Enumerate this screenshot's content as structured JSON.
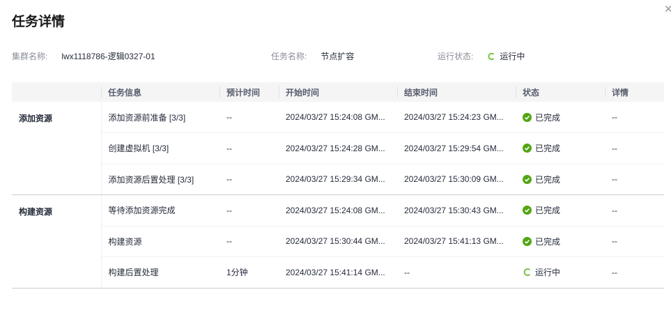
{
  "dialog": {
    "title": "任务详情",
    "close_icon": "close-icon"
  },
  "info": {
    "cluster_label": "集群名称:",
    "cluster_value": "lwx1118786-逻辑0327-01",
    "task_label": "任务名称:",
    "task_value": "节点扩容",
    "status_label": "运行状态:",
    "status_value": "运行中"
  },
  "colors": {
    "success": "#52a513",
    "running": "#7ac143"
  },
  "table": {
    "headers": [
      "",
      "任务信息",
      "预计时间",
      "开始时间",
      "结束时间",
      "状态",
      "详情"
    ],
    "groups": [
      {
        "name": "添加资源",
        "rows": [
          {
            "task": "添加资源前准备 [3/3]",
            "est": "--",
            "start": "2024/03/27 15:24:08 GM...",
            "end": "2024/03/27 15:24:23 GM...",
            "status": "已完成",
            "state": "done",
            "detail": "--"
          },
          {
            "task": "创建虚拟机 [3/3]",
            "est": "--",
            "start": "2024/03/27 15:24:28 GM...",
            "end": "2024/03/27 15:29:54 GM...",
            "status": "已完成",
            "state": "done",
            "detail": "--"
          },
          {
            "task": "添加资源后置处理 [3/3]",
            "est": "--",
            "start": "2024/03/27 15:29:34 GM...",
            "end": "2024/03/27 15:30:09 GM...",
            "status": "已完成",
            "state": "done",
            "detail": "--"
          }
        ]
      },
      {
        "name": "构建资源",
        "rows": [
          {
            "task": "等待添加资源完成",
            "est": "--",
            "start": "2024/03/27 15:24:08 GM...",
            "end": "2024/03/27 15:30:43 GM...",
            "status": "已完成",
            "state": "done",
            "detail": "--"
          },
          {
            "task": "构建资源",
            "est": "--",
            "start": "2024/03/27 15:30:44 GM...",
            "end": "2024/03/27 15:41:13 GM...",
            "status": "已完成",
            "state": "done",
            "detail": "--"
          },
          {
            "task": "构建后置处理",
            "est": "1分钟",
            "start": "2024/03/27 15:41:14 GM...",
            "end": "--",
            "status": "运行中",
            "state": "running",
            "detail": "--"
          }
        ]
      }
    ]
  }
}
